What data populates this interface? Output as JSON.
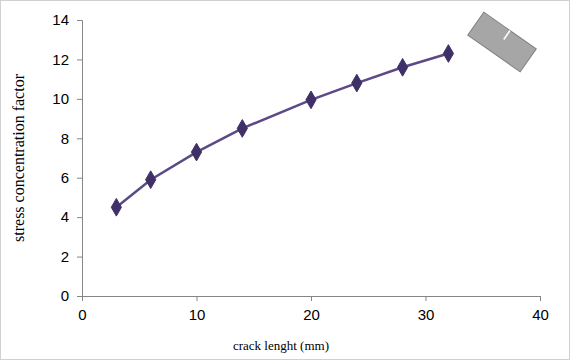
{
  "chart_data": {
    "type": "line",
    "x_label": "crack lenght (mm)",
    "y_label": "stress concentration factor",
    "x": [
      3,
      6,
      10,
      14,
      20,
      24,
      28,
      32
    ],
    "values": [
      4.5,
      5.9,
      7.3,
      8.5,
      9.95,
      10.8,
      11.6,
      12.3
    ],
    "color": "#5b4a86",
    "marker": "diamond",
    "line_style": "solid",
    "xlim": [
      0,
      40
    ],
    "xticks": [
      0,
      10,
      20,
      30,
      40
    ],
    "ylim": [
      0,
      14
    ],
    "yticks": [
      0,
      2,
      4,
      6,
      8,
      10,
      12,
      14
    ],
    "grid": false
  }
}
